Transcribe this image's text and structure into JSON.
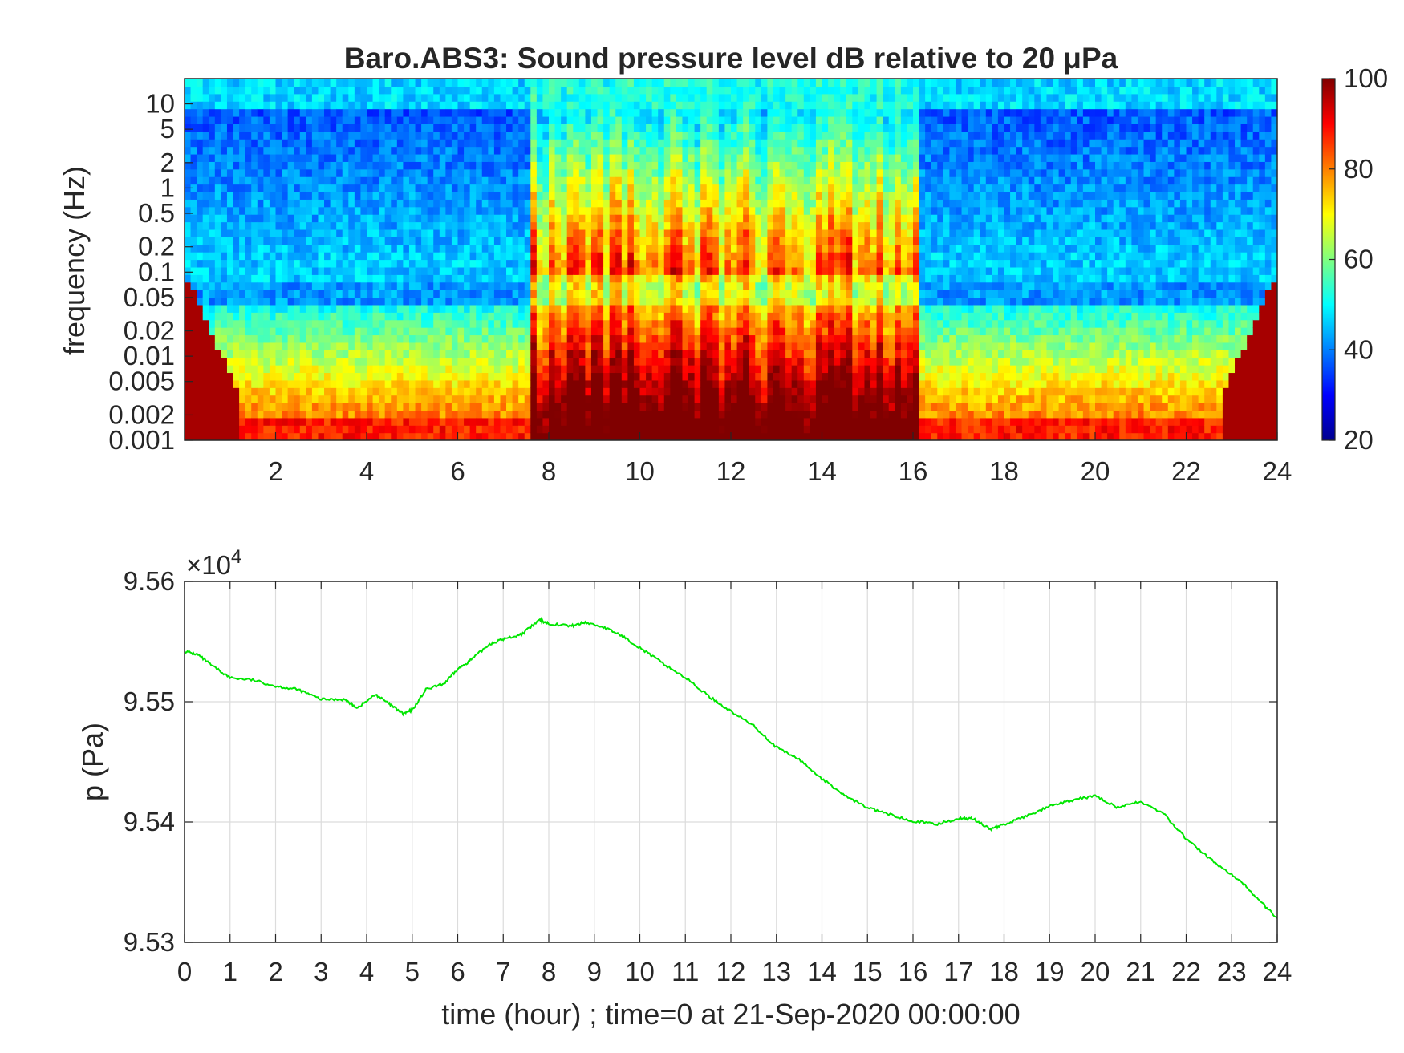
{
  "chart_data": [
    {
      "type": "heatmap",
      "title": "Baro.ABS3: Sound pressure level dB relative to 20 μPa",
      "ylabel": "frequency (Hz)",
      "xlabel": "",
      "x_ticks": [
        2,
        4,
        6,
        8,
        10,
        12,
        14,
        16,
        18,
        20,
        22,
        24
      ],
      "xlim": [
        0,
        24
      ],
      "y_scale": "log",
      "y_ticks": [
        "10",
        "5",
        "2",
        "1",
        "0.5",
        "0.2",
        "0.1",
        "0.05",
        "0.02",
        "0.01",
        "0.005",
        "0.002",
        "0.001"
      ],
      "y_tick_values": [
        10,
        5,
        2,
        1,
        0.5,
        0.2,
        0.1,
        0.05,
        0.02,
        0.01,
        0.005,
        0.002,
        0.001
      ],
      "ylim": [
        0.001,
        20
      ],
      "colormap": "jet",
      "colorbar": {
        "ticks": [
          "100",
          "80",
          "60",
          "40",
          "20"
        ],
        "tick_values": [
          100,
          80,
          60,
          40,
          20
        ],
        "range": [
          20,
          100
        ]
      },
      "grid": false,
      "activity_windows_hour": [
        [
          7.6,
          16.1
        ]
      ],
      "description_levels_db": {
        "quiet_high_freq": 45,
        "quiet_mid_freq": 38,
        "busy_low_freq": 85,
        "lowest_band": 90
      }
    },
    {
      "type": "line",
      "title": "",
      "xlabel": "time (hour) ; time=0 at 21-Sep-2020 00:00:00",
      "ylabel": "p (Pa)",
      "exponent_label": "×10",
      "exponent_power": "4",
      "xlim": [
        0,
        24
      ],
      "ylim": [
        9.53,
        9.56
      ],
      "x_ticks": [
        "0",
        "1",
        "2",
        "3",
        "4",
        "5",
        "6",
        "7",
        "8",
        "9",
        "10",
        "11",
        "12",
        "13",
        "14",
        "15",
        "16",
        "17",
        "18",
        "19",
        "20",
        "21",
        "22",
        "23",
        "24"
      ],
      "y_ticks": [
        "9.53",
        "9.54",
        "9.55",
        "9.56"
      ],
      "grid": true,
      "series": [
        {
          "color": "#00e600",
          "x": [
            0,
            0.3,
            0.6,
            1.0,
            1.5,
            2.0,
            2.5,
            3.0,
            3.5,
            3.8,
            4.2,
            4.5,
            4.8,
            5.0,
            5.3,
            5.7,
            6.0,
            6.3,
            6.7,
            7.0,
            7.4,
            7.8,
            8.0,
            8.5,
            8.8,
            9.2,
            9.6,
            10.0,
            10.5,
            11.0,
            11.5,
            12.0,
            12.5,
            13.0,
            13.5,
            14.0,
            14.5,
            15.0,
            15.5,
            16.0,
            16.5,
            17.0,
            17.3,
            17.7,
            18.0,
            18.5,
            19.0,
            19.5,
            20.0,
            20.5,
            21.0,
            21.5,
            22.0,
            22.5,
            23.0,
            23.3,
            23.6,
            24.0
          ],
          "y": [
            9.5542,
            9.5539,
            9.553,
            9.552,
            9.5518,
            9.5513,
            9.551,
            9.5502,
            9.5502,
            9.5495,
            9.5506,
            9.5498,
            9.549,
            9.5493,
            9.551,
            9.5515,
            9.5527,
            9.5535,
            9.5548,
            9.5552,
            9.5556,
            9.5568,
            9.5565,
            9.5563,
            9.5566,
            9.5562,
            9.5555,
            9.5545,
            9.5532,
            9.552,
            9.5505,
            9.5492,
            9.548,
            9.5462,
            9.5452,
            9.5436,
            9.5422,
            9.5412,
            9.5406,
            9.5401,
            9.5398,
            9.5403,
            9.5403,
            9.5394,
            9.5398,
            9.5405,
            9.5413,
            9.5418,
            9.5422,
            9.5412,
            9.5417,
            9.5407,
            9.5386,
            9.537,
            9.5356,
            9.5347,
            9.5335,
            9.532
          ]
        }
      ]
    }
  ]
}
